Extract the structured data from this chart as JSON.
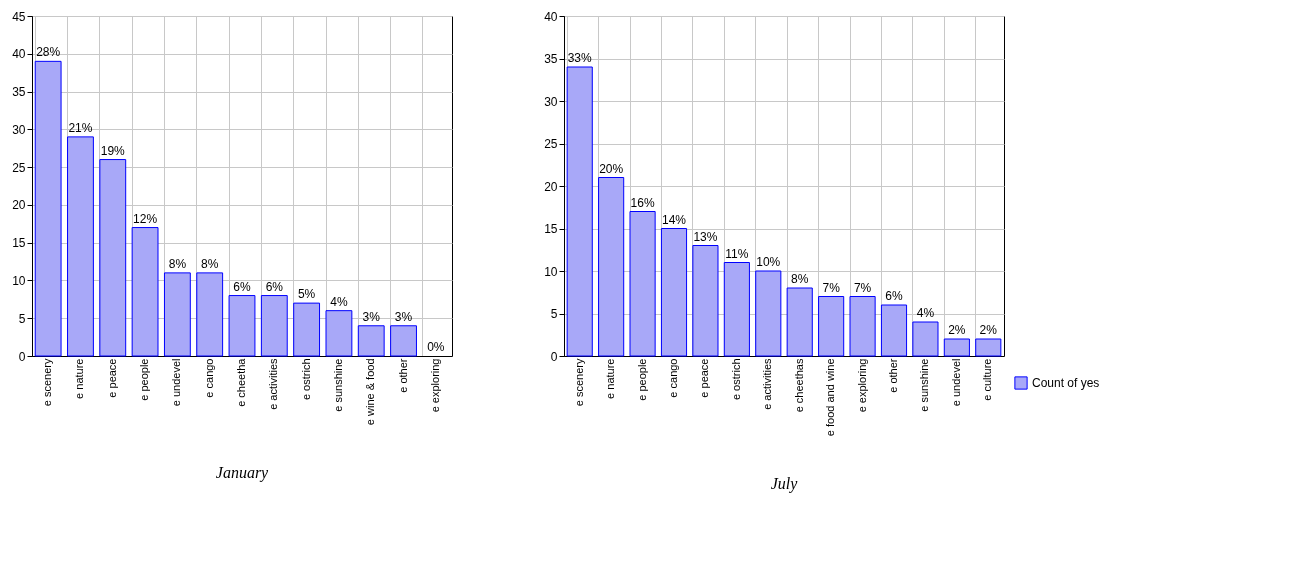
{
  "chart_data": [
    {
      "type": "bar",
      "title": "January",
      "categories": [
        "e scenery",
        "e nature",
        "e peace",
        "e people",
        "e undevel",
        "e cango",
        "e cheetha",
        "e activities",
        "e ostrich",
        "e sunshine",
        "e wine & food",
        "e other",
        "e exploring"
      ],
      "series": [
        {
          "color": "#a8a8f8",
          "values": [
            39,
            29,
            26,
            17,
            11,
            11,
            8,
            8,
            7,
            6,
            4,
            4,
            0
          ]
        }
      ],
      "value_labels": [
        "28%",
        "21%",
        "19%",
        "12%",
        "8%",
        "8%",
        "6%",
        "6%",
        "5%",
        "4%",
        "3%",
        "3%",
        "0%"
      ],
      "ylim": [
        0,
        45
      ],
      "yticks": [
        0,
        5,
        10,
        15,
        20,
        25,
        30,
        35,
        40,
        45
      ],
      "grid": true
    },
    {
      "type": "bar",
      "title": "July",
      "categories": [
        "e scenery",
        "e nature",
        "e people",
        "e cango",
        "e peace",
        "e ostrich",
        "e activities",
        "e cheethas",
        "e food and wine",
        "e exploring",
        "e other",
        "e sunshine",
        "e undevel",
        "e culture"
      ],
      "series": [
        {
          "name": "Count of yes",
          "color": "#a8a8f8",
          "values": [
            34,
            21,
            17,
            15,
            13,
            11,
            10,
            8,
            7,
            7,
            6,
            4,
            2,
            2
          ]
        }
      ],
      "value_labels": [
        "33%",
        "20%",
        "16%",
        "14%",
        "13%",
        "11%",
        "10%",
        "8%",
        "7%",
        "7%",
        "6%",
        "4%",
        "2%",
        "2%"
      ],
      "ylim": [
        0,
        40
      ],
      "yticks": [
        0,
        5,
        10,
        15,
        20,
        25,
        30,
        35,
        40
      ],
      "grid": true,
      "legend": "bottom right"
    }
  ]
}
